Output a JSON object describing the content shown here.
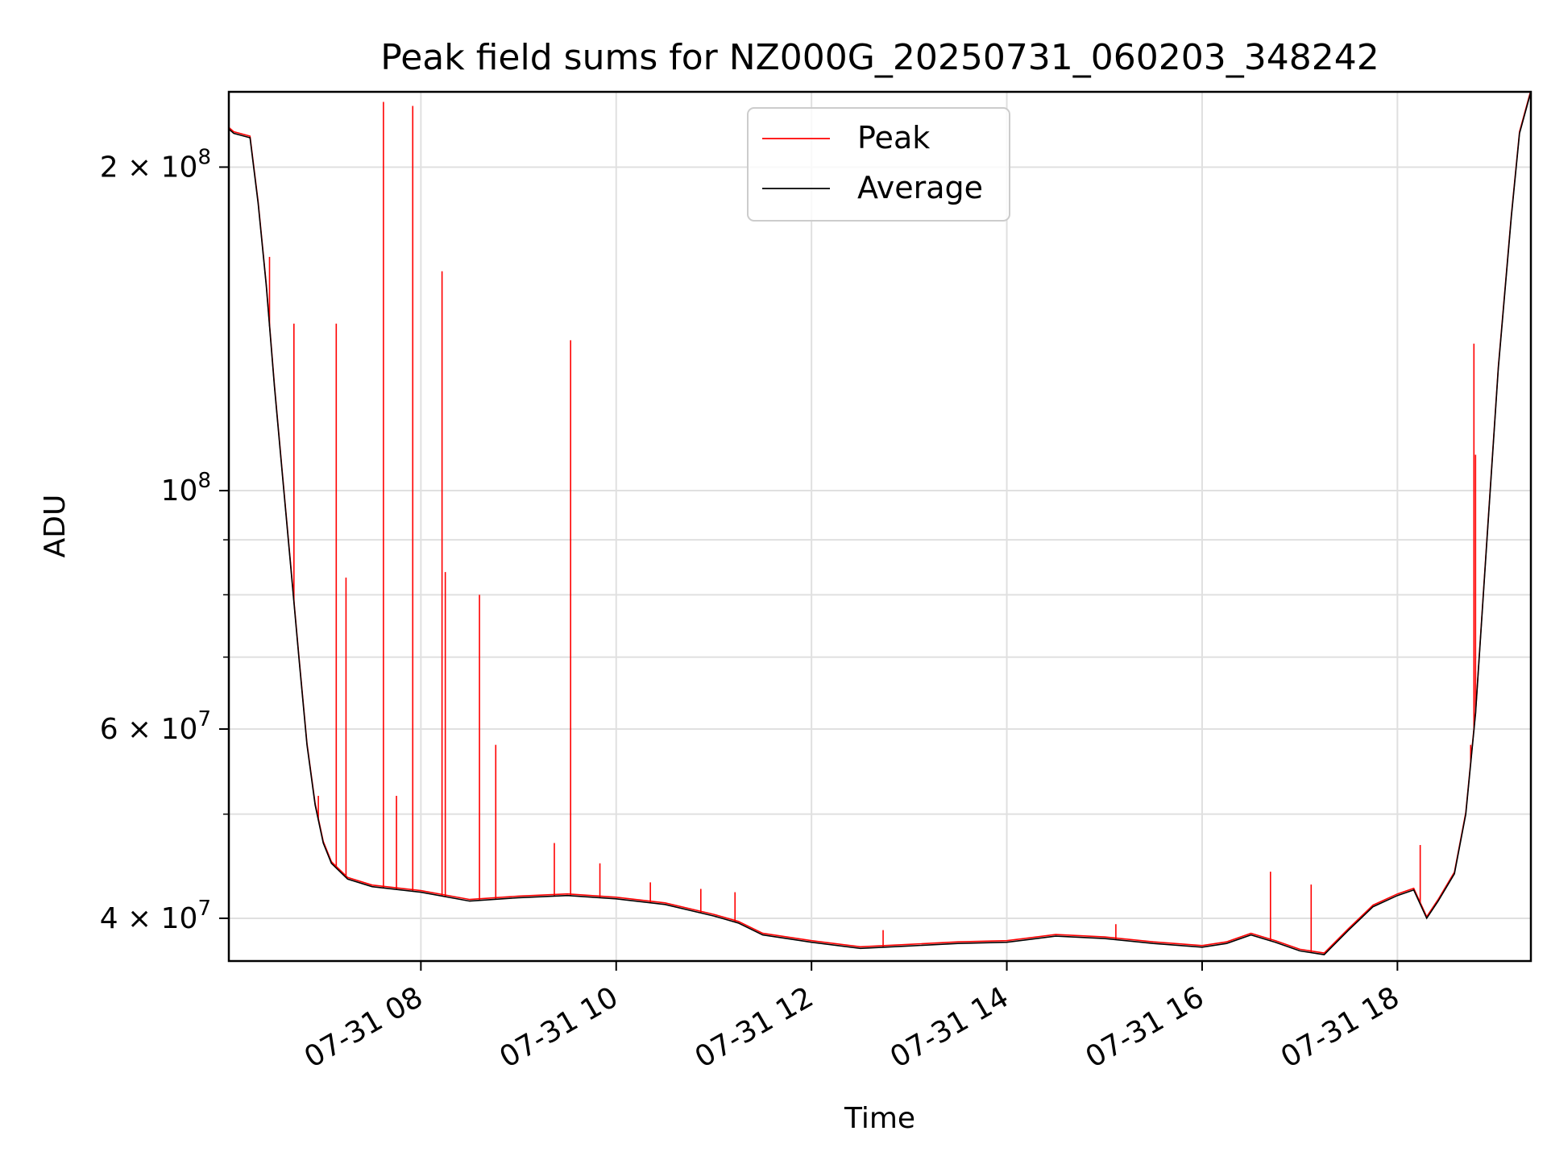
{
  "chart_data": {
    "type": "line",
    "title": "Peak field sums for NZ000G_20250731_060203_348242",
    "xlabel": "Time",
    "ylabel": "ADU",
    "y_scale": "log",
    "ylim": [
      36500000,
      235000000
    ],
    "xlim": [
      "2025-07-31 06:02",
      "2025-07-31 19:22"
    ],
    "grid": true,
    "legend": {
      "placement": "top-center",
      "entries": [
        "Peak",
        "Average"
      ]
    },
    "colors": {
      "Peak": "#ff0000",
      "Average": "#000000",
      "grid": "#e0e0e0"
    },
    "x_ticks": [
      {
        "t": "2025-07-31 08:00",
        "label": "07-31 08"
      },
      {
        "t": "2025-07-31 10:00",
        "label": "07-31 10"
      },
      {
        "t": "2025-07-31 12:00",
        "label": "07-31 12"
      },
      {
        "t": "2025-07-31 14:00",
        "label": "07-31 14"
      },
      {
        "t": "2025-07-31 16:00",
        "label": "07-31 16"
      },
      {
        "t": "2025-07-31 18:00",
        "label": "07-31 18"
      }
    ],
    "y_ticks_major": [
      {
        "v": 40000000,
        "mant": "4",
        "exp": "7"
      },
      {
        "v": 60000000,
        "mant": "6",
        "exp": "7"
      },
      {
        "v": 100000000,
        "mant": "",
        "exp": "8"
      },
      {
        "v": 200000000,
        "mant": "2",
        "exp": "8"
      }
    ],
    "y_ticks_minor": [
      50000000,
      70000000,
      80000000,
      90000000
    ],
    "series": [
      {
        "name": "Average",
        "points": [
          [
            "2025-07-31 06:02",
            217000000
          ],
          [
            "2025-07-31 06:05",
            215000000
          ],
          [
            "2025-07-31 06:15",
            213000000
          ],
          [
            "2025-07-31 06:20",
            185000000
          ],
          [
            "2025-07-31 06:25",
            155000000
          ],
          [
            "2025-07-31 06:30",
            125000000
          ],
          [
            "2025-07-31 06:35",
            103000000
          ],
          [
            "2025-07-31 06:40",
            85000000
          ],
          [
            "2025-07-31 06:45",
            70000000
          ],
          [
            "2025-07-31 06:50",
            58000000
          ],
          [
            "2025-07-31 06:55",
            51000000
          ],
          [
            "2025-07-31 07:00",
            47000000
          ],
          [
            "2025-07-31 07:05",
            45000000
          ],
          [
            "2025-07-31 07:15",
            43500000
          ],
          [
            "2025-07-31 07:30",
            42800000
          ],
          [
            "2025-07-31 08:00",
            42300000
          ],
          [
            "2025-07-31 08:30",
            41500000
          ],
          [
            "2025-07-31 09:00",
            41800000
          ],
          [
            "2025-07-31 09:30",
            42000000
          ],
          [
            "2025-07-31 10:00",
            41700000
          ],
          [
            "2025-07-31 10:30",
            41200000
          ],
          [
            "2025-07-31 11:00",
            40200000
          ],
          [
            "2025-07-31 11:15",
            39600000
          ],
          [
            "2025-07-31 11:30",
            38600000
          ],
          [
            "2025-07-31 12:00",
            38000000
          ],
          [
            "2025-07-31 12:30",
            37500000
          ],
          [
            "2025-07-31 13:00",
            37700000
          ],
          [
            "2025-07-31 13:30",
            37900000
          ],
          [
            "2025-07-31 14:00",
            38000000
          ],
          [
            "2025-07-31 14:30",
            38500000
          ],
          [
            "2025-07-31 15:00",
            38300000
          ],
          [
            "2025-07-31 15:30",
            37900000
          ],
          [
            "2025-07-31 16:00",
            37600000
          ],
          [
            "2025-07-31 16:15",
            37900000
          ],
          [
            "2025-07-31 16:30",
            38600000
          ],
          [
            "2025-07-31 16:45",
            38000000
          ],
          [
            "2025-07-31 17:00",
            37300000
          ],
          [
            "2025-07-31 17:15",
            37000000
          ],
          [
            "2025-07-31 17:30",
            39000000
          ],
          [
            "2025-07-31 17:45",
            41000000
          ],
          [
            "2025-07-31 18:00",
            42000000
          ],
          [
            "2025-07-31 18:10",
            42500000
          ],
          [
            "2025-07-31 18:18",
            40000000
          ],
          [
            "2025-07-31 18:25",
            41500000
          ],
          [
            "2025-07-31 18:35",
            44000000
          ],
          [
            "2025-07-31 18:42",
            50000000
          ],
          [
            "2025-07-31 18:48",
            62000000
          ],
          [
            "2025-07-31 18:55",
            90000000
          ],
          [
            "2025-07-31 19:02",
            130000000
          ],
          [
            "2025-07-31 19:10",
            180000000
          ],
          [
            "2025-07-31 19:15",
            215000000
          ],
          [
            "2025-07-31 19:22",
            235000000
          ]
        ]
      },
      {
        "name": "Peak",
        "spikes": [
          [
            "2025-07-31 06:27",
            165000000
          ],
          [
            "2025-07-31 06:42",
            143000000
          ],
          [
            "2025-07-31 06:57",
            52000000
          ],
          [
            "2025-07-31 07:08",
            143000000
          ],
          [
            "2025-07-31 07:14",
            83000000
          ],
          [
            "2025-07-31 07:37",
            230000000
          ],
          [
            "2025-07-31 07:45",
            52000000
          ],
          [
            "2025-07-31 07:55",
            228000000
          ],
          [
            "2025-07-31 08:13",
            160000000
          ],
          [
            "2025-07-31 08:15",
            84000000
          ],
          [
            "2025-07-31 08:36",
            80000000
          ],
          [
            "2025-07-31 08:46",
            58000000
          ],
          [
            "2025-07-31 09:22",
            47000000
          ],
          [
            "2025-07-31 09:32",
            138000000
          ],
          [
            "2025-07-31 09:50",
            45000000
          ],
          [
            "2025-07-31 10:21",
            43200000
          ],
          [
            "2025-07-31 10:52",
            42600000
          ],
          [
            "2025-07-31 11:13",
            42300000
          ],
          [
            "2025-07-31 12:44",
            39000000
          ],
          [
            "2025-07-31 15:07",
            39500000
          ],
          [
            "2025-07-31 16:42",
            44200000
          ],
          [
            "2025-07-31 17:07",
            43000000
          ],
          [
            "2025-07-31 18:14",
            46800000
          ],
          [
            "2025-07-31 18:45",
            58000000
          ],
          [
            "2025-07-31 18:47",
            137000000
          ],
          [
            "2025-07-31 18:48",
            108000000
          ]
        ]
      }
    ]
  }
}
